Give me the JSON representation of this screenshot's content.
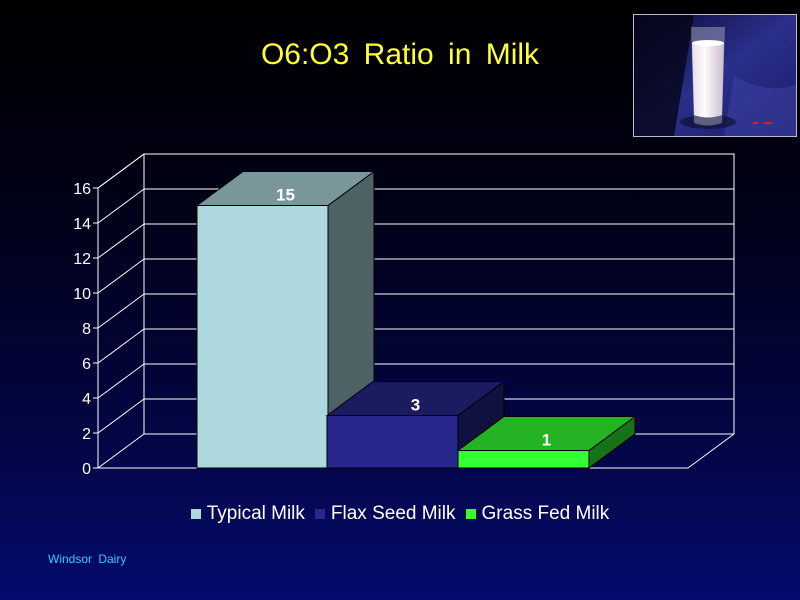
{
  "slide": {
    "title": "O6:O3  Ratio  in  Milk",
    "footer": "Windsor  Dairy"
  },
  "colors": {
    "background": "#000033",
    "title": "#ffff33",
    "footer": "#33ccff",
    "text": "#ffffff"
  },
  "photo": {
    "description_icon": "glass-of-milk-icon"
  },
  "chart_data": {
    "type": "bar",
    "style": "3d",
    "categories": [
      "Typical Milk",
      "Flax Seed Milk",
      "Grass Fed Milk"
    ],
    "values": [
      15,
      3,
      1
    ],
    "data_labels": [
      "15",
      "3",
      "1"
    ],
    "colors": [
      "#add8de",
      "#26268c",
      "#33ff33"
    ],
    "ylim": [
      0,
      16
    ],
    "yticks": [
      0,
      2,
      4,
      6,
      8,
      10,
      12,
      14,
      16
    ],
    "grid": true,
    "legend_position": "bottom",
    "title": "",
    "xlabel": "",
    "ylabel": ""
  }
}
